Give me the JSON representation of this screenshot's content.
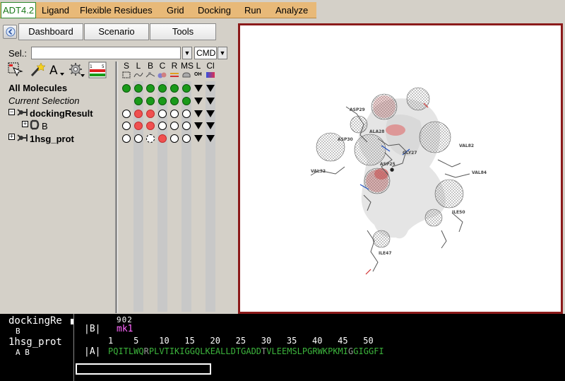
{
  "menu": {
    "items": [
      {
        "label": "ADT4.2",
        "active": true
      },
      {
        "label": "Ligand"
      },
      {
        "label": "Flexible Residues"
      },
      {
        "label": "Grid"
      },
      {
        "label": "Docking"
      },
      {
        "label": "Run"
      },
      {
        "label": "Analyze"
      }
    ]
  },
  "tabs": {
    "dashboard": "Dashboard",
    "scenario": "Scenario",
    "tools": "Tools"
  },
  "selection": {
    "label": "Sel.:",
    "value": "",
    "cmd": "CMD"
  },
  "columns": [
    {
      "key": "S"
    },
    {
      "key": "L"
    },
    {
      "key": "B"
    },
    {
      "key": "C"
    },
    {
      "key": "R"
    },
    {
      "key": "MS"
    },
    {
      "key": "L",
      "sub": "OH"
    },
    {
      "key": "Cl"
    }
  ],
  "tree": {
    "all_molecules": "All Molecules",
    "current_selection": "Current Selection",
    "docking_result": "dockingResult",
    "chain_b": "B",
    "protein": "1hsg_prot"
  },
  "rows": [
    {
      "name": "all",
      "states": [
        "green",
        "green",
        "green",
        "green",
        "green",
        "green",
        "tri",
        "tri"
      ]
    },
    {
      "name": "current",
      "states": [
        "none",
        "green",
        "green",
        "green",
        "green",
        "green",
        "tri",
        "tri"
      ]
    },
    {
      "name": "dockingResult",
      "states": [
        "white",
        "red",
        "red",
        "white",
        "white",
        "white",
        "tri",
        "tri"
      ]
    },
    {
      "name": "B",
      "states": [
        "white",
        "red",
        "red",
        "white",
        "white",
        "white",
        "tri",
        "tri"
      ]
    },
    {
      "name": "1hsg_prot",
      "states": [
        "white",
        "white",
        "white-dash",
        "red",
        "white",
        "white",
        "tri",
        "tri"
      ]
    }
  ],
  "viewer": {
    "residue_labels": [
      "ASP29",
      "ALA28",
      "ASP30",
      "GLY27",
      "ASP25",
      "VAL32",
      "VAL82",
      "VAL84",
      "ILE50",
      "ILE47"
    ]
  },
  "sequence": {
    "names": [
      {
        "label": "dockingRe",
        "chains": "B"
      },
      {
        "label": "1hsg_prot",
        "chains": "A B"
      }
    ],
    "ligand_number": "902",
    "ligand_chain": "|B|",
    "ligand_name": "mk1",
    "ruler": "1    5    10   15   20   25   30   35   40   45   50",
    "protein_chain": "|A|",
    "protein_seq": "PQITLWQRPLVTIKIGGQLKEALLDTGADDTVLEEMSLPGRWKPKMIGGIGGFI"
  },
  "colors": {
    "menu_bg": "#e8b978",
    "viewer_border": "#8b1a1a",
    "green": "#1a9a1a",
    "red": "#f05050",
    "ligand_name": "#ff66ff",
    "seq_green": "#3cb43c",
    "seq_grey": "#9a9a9a"
  }
}
